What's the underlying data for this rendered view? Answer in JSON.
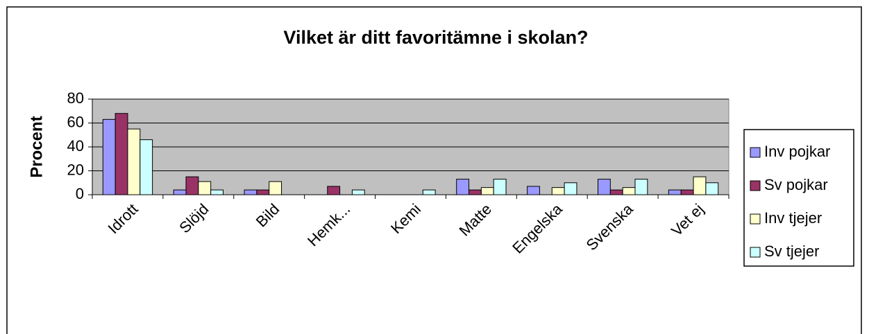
{
  "chart_data": {
    "type": "bar",
    "title": "Vilket är ditt favoritämne i skolan?",
    "y_label": "Procent",
    "categories": [
      "Idrott",
      "Slöjd",
      "Bild",
      "Hemk...",
      "Kemi",
      "Matte",
      "Engelska",
      "Svenska",
      "Vet ej"
    ],
    "series": [
      {
        "name": "Inv pojkar",
        "color": "#9999ff",
        "values": [
          63,
          4,
          4,
          0,
          0,
          13,
          7,
          13,
          4
        ]
      },
      {
        "name": "Sv pojkar",
        "color": "#993366",
        "values": [
          68,
          15,
          4,
          7,
          0,
          4,
          0,
          4,
          4
        ]
      },
      {
        "name": "Inv tjejer",
        "color": "#ffffcc",
        "values": [
          55,
          11,
          11,
          0,
          0,
          6,
          6,
          6,
          15
        ]
      },
      {
        "name": "Sv tjejer",
        "color": "#ccffff",
        "values": [
          46,
          4,
          0,
          4,
          4,
          13,
          10,
          13,
          10
        ]
      }
    ],
    "ylim": [
      0,
      80
    ],
    "yticks": [
      0,
      20,
      40,
      60,
      80
    ],
    "grid": true,
    "legend": "right"
  }
}
